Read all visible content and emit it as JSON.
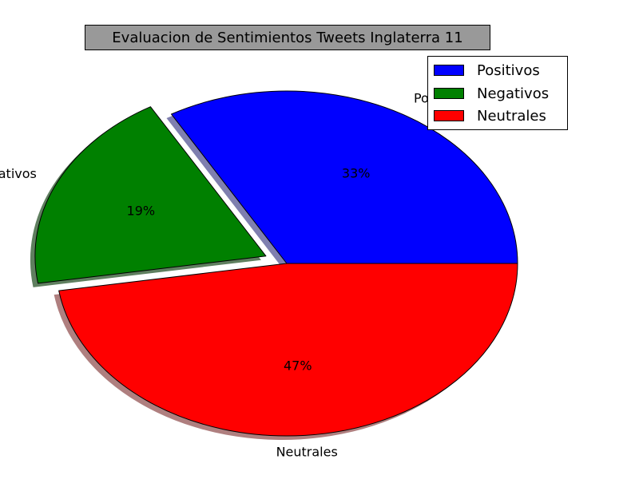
{
  "chart_data": {
    "type": "pie",
    "title": "Evaluacion de Sentimientos Tweets Inglaterra 11",
    "slices": [
      {
        "label": "Positivos",
        "value": 33,
        "pct_label": "33%",
        "color": "#0000ff",
        "shadow": "#7f7faf",
        "exploded": false
      },
      {
        "label": "Negativos",
        "value": 19,
        "pct_label": "19%",
        "color": "#008000",
        "shadow": "#5f7f5f",
        "exploded": true
      },
      {
        "label": "Neutrales",
        "value": 47,
        "pct_label": "47%",
        "color": "#ff0000",
        "shadow": "#af7f7f",
        "exploded": false
      }
    ],
    "start_angle_deg": 0,
    "direction": "counterclockwise",
    "shadow": true,
    "legend": {
      "placement": "top-right",
      "entries": [
        "Positivos",
        "Negativos",
        "Neutrales"
      ]
    }
  }
}
